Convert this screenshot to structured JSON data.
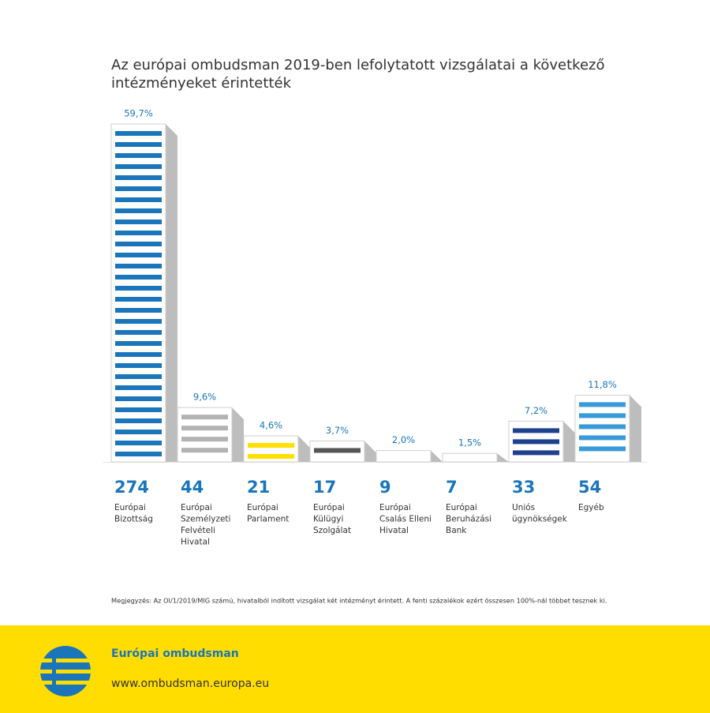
{
  "chart_data": {
    "type": "bar",
    "title": [
      "Az európai ombudsman 2019-ben lefolytatott vizsgálatai a következő",
      "intézményeket érintették"
    ],
    "categories": [
      [
        "Európai",
        "Bizottság"
      ],
      [
        "Európai",
        "Személyzeti",
        "Felvételi",
        "Hivatal"
      ],
      [
        "Európai",
        "Parlament"
      ],
      [
        "Európai",
        "Külügyi",
        "Szolgálat"
      ],
      [
        "Európai",
        "Csalás Elleni",
        "Hivatal"
      ],
      [
        "Európai",
        "Beruházási",
        "Bank"
      ],
      [
        "Uniós",
        "ügynökségek"
      ],
      [
        "Egyéb"
      ]
    ],
    "values": [
      59.7,
      9.6,
      4.6,
      3.7,
      2.0,
      1.5,
      7.2,
      11.8
    ],
    "value_labels": [
      "59,7%",
      "9,6%",
      "4,6%",
      "3,7%",
      "2,0%",
      "1,5%",
      "7,2%",
      "11,8%"
    ],
    "counts": [
      274,
      44,
      21,
      17,
      9,
      7,
      33,
      54
    ],
    "colors": [
      "#1a75bb",
      "#b3b3b3",
      "#ffe000",
      "#555555",
      "#7a5a14",
      "#f5a623",
      "#1f3f8f",
      "#3a9ad9"
    ]
  },
  "note": "Megjegyzés: Az OI/1/2019/MIG számú, hivatalból indított vizsgálat két intézményt érintett. A fenti százalékok ezért összesen 100%-nál többet tesznek ki.",
  "footer": {
    "name": "Európai ombudsman",
    "url": "www.ombudsman.europa.eu"
  }
}
